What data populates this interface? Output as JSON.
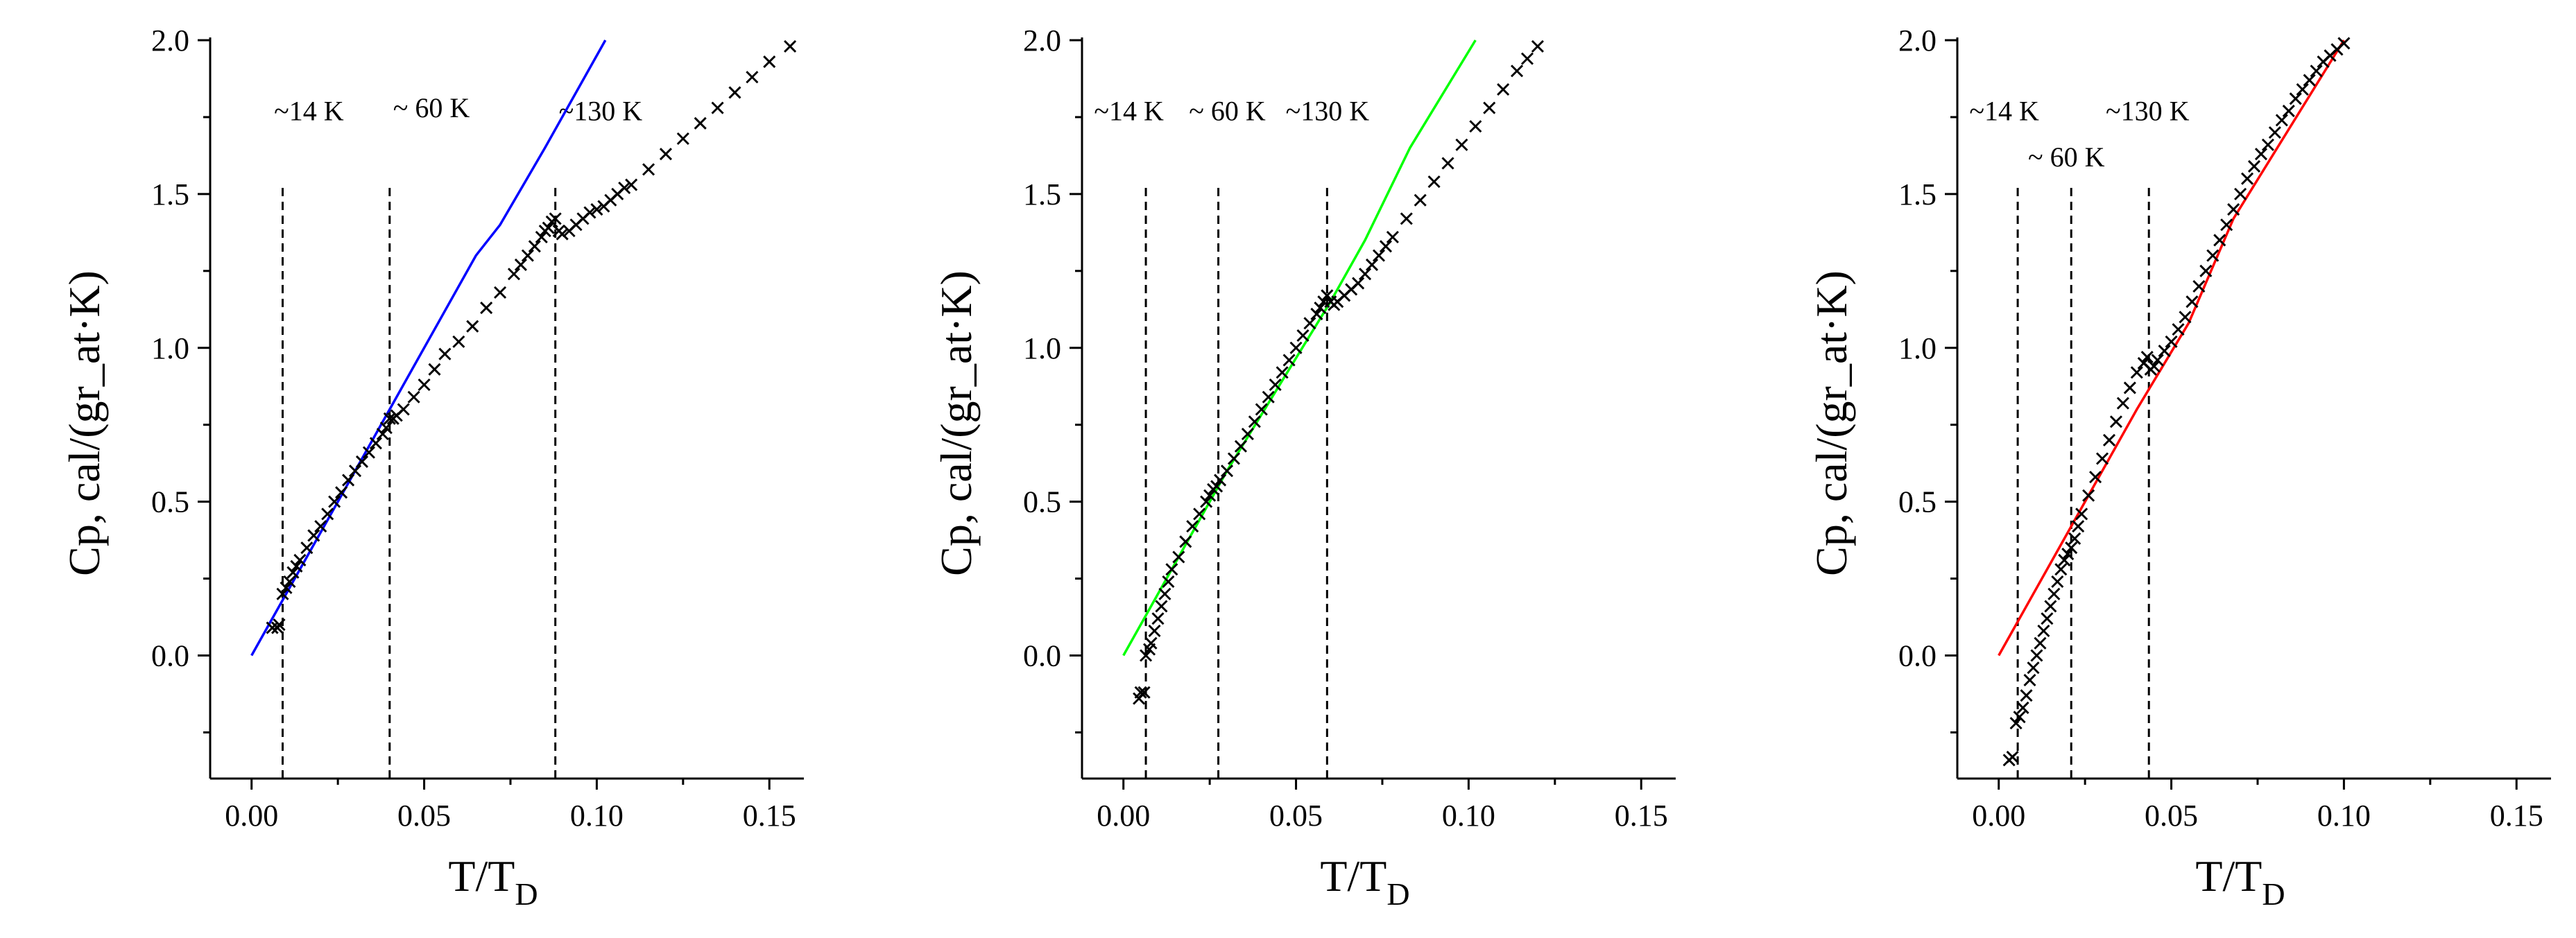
{
  "chart_data": [
    {
      "type": "scatter",
      "xlabel_main": "T/T",
      "xlabel_sub": "D",
      "ylabel": "Cp, cal/(gr_at·K)",
      "xlim": [
        -0.012,
        0.16
      ],
      "ylim": [
        -0.4,
        2.0
      ],
      "x_ticks": [
        0.0,
        0.05,
        0.1,
        0.15
      ],
      "x_tick_labels": [
        "0.00",
        "0.05",
        "0.10",
        "0.15"
      ],
      "y_ticks": [
        0.0,
        0.5,
        1.0,
        1.5,
        2.0
      ],
      "y_tick_labels": [
        "0.0",
        "0.5",
        "1.0",
        "1.5",
        "2.0"
      ],
      "line_color": "#0000ff",
      "fit_line": {
        "x": [
          0.0,
          0.04,
          0.065,
          0.072,
          0.085,
          0.1025
        ],
        "y": [
          0.0,
          0.8,
          1.3,
          1.4,
          1.65,
          2.0
        ]
      },
      "annotations": [
        {
          "label": "~14 K",
          "x": 0.009,
          "ymax": 1.52,
          "label_x": 0.0065,
          "label_y": 1.74
        },
        {
          "label": "~ 60 K",
          "x": 0.04,
          "ymax": 1.52,
          "label_x": 0.041,
          "label_y": 1.75
        },
        {
          "label": "~130 K",
          "x": 0.088,
          "ymax": 1.52,
          "label_x": 0.089,
          "label_y": 1.74
        }
      ],
      "markers": {
        "x": [
          0.006,
          0.0075,
          0.008,
          0.009,
          0.01,
          0.011,
          0.012,
          0.013,
          0.014,
          0.016,
          0.018,
          0.02,
          0.022,
          0.024,
          0.026,
          0.028,
          0.03,
          0.032,
          0.034,
          0.036,
          0.038,
          0.039,
          0.04,
          0.041,
          0.042,
          0.044,
          0.047,
          0.05,
          0.053,
          0.056,
          0.06,
          0.064,
          0.068,
          0.072,
          0.076,
          0.078,
          0.08,
          0.082,
          0.084,
          0.085,
          0.086,
          0.087,
          0.088,
          0.089,
          0.09,
          0.092,
          0.094,
          0.096,
          0.098,
          0.1,
          0.102,
          0.104,
          0.106,
          0.108,
          0.11,
          0.115,
          0.12,
          0.125,
          0.13,
          0.135,
          0.14,
          0.145,
          0.15,
          0.156
        ],
        "y": [
          0.09,
          0.09,
          0.1,
          0.2,
          0.22,
          0.24,
          0.27,
          0.29,
          0.31,
          0.35,
          0.39,
          0.42,
          0.46,
          0.5,
          0.53,
          0.57,
          0.6,
          0.63,
          0.66,
          0.69,
          0.72,
          0.74,
          0.77,
          0.77,
          0.78,
          0.8,
          0.84,
          0.88,
          0.93,
          0.98,
          1.02,
          1.07,
          1.13,
          1.18,
          1.24,
          1.27,
          1.3,
          1.33,
          1.36,
          1.38,
          1.39,
          1.41,
          1.42,
          1.38,
          1.37,
          1.38,
          1.4,
          1.42,
          1.44,
          1.45,
          1.46,
          1.48,
          1.5,
          1.52,
          1.53,
          1.58,
          1.63,
          1.68,
          1.73,
          1.78,
          1.83,
          1.88,
          1.93,
          1.98
        ]
      }
    },
    {
      "type": "scatter",
      "xlabel_main": "T/T",
      "xlabel_sub": "D",
      "ylabel": "Cp, cal/(gr_at·K)",
      "xlim": [
        -0.012,
        0.16
      ],
      "ylim": [
        -0.4,
        2.0
      ],
      "x_ticks": [
        0.0,
        0.05,
        0.1,
        0.15
      ],
      "x_tick_labels": [
        "0.00",
        "0.05",
        "0.10",
        "0.15"
      ],
      "y_ticks": [
        0.0,
        0.5,
        1.0,
        1.5,
        2.0
      ],
      "y_tick_labels": [
        "0.0",
        "0.5",
        "1.0",
        "1.5",
        "2.0"
      ],
      "line_color": "#00ff00",
      "fit_line": {
        "x": [
          0.0,
          0.03,
          0.06,
          0.07,
          0.083,
          0.102
        ],
        "y": [
          0.0,
          0.6,
          1.15,
          1.35,
          1.65,
          2.0
        ]
      },
      "annotations": [
        {
          "label": "~14 K",
          "x": 0.0065,
          "ymax": 1.52,
          "label_x": -0.0085,
          "label_y": 1.74
        },
        {
          "label": "~ 60 K",
          "x": 0.0275,
          "ymax": 1.52,
          "label_x": 0.019,
          "label_y": 1.74
        },
        {
          "label": "~130 K",
          "x": 0.059,
          "ymax": 1.52,
          "label_x": 0.047,
          "label_y": 1.74
        }
      ],
      "markers": {
        "x": [
          0.0045,
          0.005,
          0.006,
          0.0065,
          0.0075,
          0.008,
          0.009,
          0.01,
          0.011,
          0.012,
          0.013,
          0.014,
          0.016,
          0.018,
          0.02,
          0.022,
          0.024,
          0.025,
          0.026,
          0.027,
          0.028,
          0.03,
          0.032,
          0.034,
          0.036,
          0.038,
          0.04,
          0.042,
          0.044,
          0.046,
          0.048,
          0.05,
          0.052,
          0.054,
          0.056,
          0.057,
          0.058,
          0.059,
          0.06,
          0.061,
          0.062,
          0.064,
          0.066,
          0.068,
          0.07,
          0.072,
          0.074,
          0.076,
          0.078,
          0.082,
          0.086,
          0.09,
          0.094,
          0.098,
          0.102,
          0.106,
          0.11,
          0.114,
          0.117,
          0.12
        ],
        "y": [
          -0.14,
          -0.12,
          -0.12,
          0.0,
          0.02,
          0.04,
          0.08,
          0.12,
          0.16,
          0.2,
          0.24,
          0.28,
          0.32,
          0.37,
          0.42,
          0.46,
          0.5,
          0.52,
          0.54,
          0.55,
          0.57,
          0.6,
          0.64,
          0.68,
          0.72,
          0.76,
          0.8,
          0.84,
          0.88,
          0.92,
          0.96,
          1.0,
          1.04,
          1.08,
          1.11,
          1.13,
          1.15,
          1.17,
          1.15,
          1.14,
          1.15,
          1.17,
          1.19,
          1.21,
          1.24,
          1.27,
          1.3,
          1.33,
          1.36,
          1.42,
          1.48,
          1.54,
          1.6,
          1.66,
          1.72,
          1.78,
          1.84,
          1.9,
          1.94,
          1.98
        ]
      }
    },
    {
      "type": "scatter",
      "xlabel_main": "T/T",
      "xlabel_sub": "D",
      "ylabel": "Cp, cal/(gr_at·K)",
      "xlim": [
        -0.012,
        0.16
      ],
      "ylim": [
        -0.4,
        2.0
      ],
      "x_ticks": [
        0.0,
        0.05,
        0.1,
        0.15
      ],
      "x_tick_labels": [
        "0.00",
        "0.05",
        "0.10",
        "0.15"
      ],
      "y_ticks": [
        0.0,
        0.5,
        1.0,
        1.5,
        2.0
      ],
      "y_tick_labels": [
        "0.0",
        "0.5",
        "1.0",
        "1.5",
        "2.0"
      ],
      "line_color": "#ff0000",
      "fit_line": {
        "x": [
          0.0,
          0.02,
          0.04,
          0.055,
          0.068,
          0.1
        ],
        "y": [
          0.0,
          0.4,
          0.8,
          1.08,
          1.42,
          2.0
        ]
      },
      "annotations": [
        {
          "label": "~14 K",
          "x": 0.0055,
          "ymax": 1.52,
          "label_x": -0.0085,
          "label_y": 1.74
        },
        {
          "label": "~ 60 K",
          "x": 0.021,
          "ymax": 1.52,
          "label_x": 0.0085,
          "label_y": 1.59
        },
        {
          "label": "~130 K",
          "x": 0.0435,
          "ymax": 1.52,
          "label_x": 0.031,
          "label_y": 1.74
        }
      ],
      "markers": {
        "x": [
          0.003,
          0.004,
          0.005,
          0.006,
          0.007,
          0.008,
          0.009,
          0.01,
          0.011,
          0.012,
          0.013,
          0.014,
          0.015,
          0.016,
          0.017,
          0.018,
          0.019,
          0.02,
          0.021,
          0.022,
          0.023,
          0.024,
          0.026,
          0.028,
          0.03,
          0.032,
          0.034,
          0.036,
          0.038,
          0.04,
          0.042,
          0.043,
          0.044,
          0.045,
          0.046,
          0.048,
          0.05,
          0.052,
          0.054,
          0.056,
          0.058,
          0.06,
          0.062,
          0.064,
          0.066,
          0.068,
          0.07,
          0.072,
          0.074,
          0.076,
          0.078,
          0.08,
          0.082,
          0.084,
          0.086,
          0.088,
          0.09,
          0.092,
          0.094,
          0.096,
          0.098,
          0.1
        ],
        "y": [
          -0.34,
          -0.33,
          -0.22,
          -0.2,
          -0.17,
          -0.13,
          -0.08,
          -0.04,
          0.0,
          0.04,
          0.08,
          0.12,
          0.16,
          0.2,
          0.24,
          0.28,
          0.31,
          0.33,
          0.35,
          0.38,
          0.42,
          0.46,
          0.52,
          0.58,
          0.64,
          0.7,
          0.76,
          0.82,
          0.87,
          0.92,
          0.95,
          0.97,
          0.93,
          0.94,
          0.96,
          0.99,
          1.02,
          1.06,
          1.1,
          1.15,
          1.2,
          1.25,
          1.3,
          1.35,
          1.4,
          1.45,
          1.5,
          1.55,
          1.59,
          1.63,
          1.66,
          1.7,
          1.74,
          1.77,
          1.81,
          1.84,
          1.87,
          1.9,
          1.93,
          1.95,
          1.97,
          1.99
        ]
      }
    }
  ]
}
